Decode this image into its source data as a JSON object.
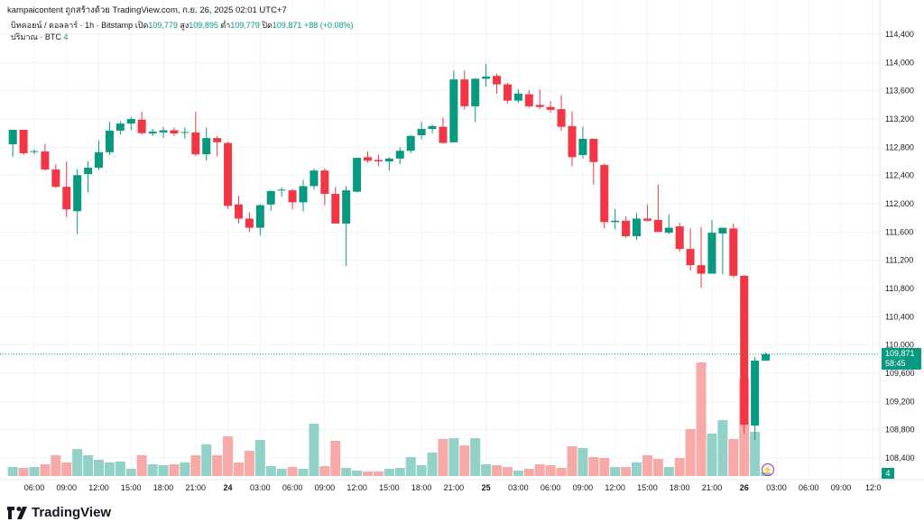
{
  "attribution": "kampaicontent ถูกสร้างด้วย TradingView.com, ก.ย. 26, 2025 02:01 UTC+7",
  "legend": {
    "symbol": "บิทคอยน์ / ดอลลาร์ · 1h · Bitstamp",
    "open_label": "เปิด",
    "open": "109,779",
    "high_label": "สูง",
    "high": "109,895",
    "low_label": "ต่ำ",
    "low": "109,779",
    "close_label": "ปิด",
    "close": "109,871",
    "change": "+88 (+0.08%)"
  },
  "volume_legend": {
    "label": "ปริมาณ · BTC",
    "value": "4"
  },
  "last_price": {
    "price": "109,871",
    "countdown": "58:45"
  },
  "volume_tag": "4",
  "brand": "TradingView",
  "colors": {
    "up": "#089981",
    "down": "#f23645",
    "vol_up": "#92d1c7",
    "vol_down": "#f7a9a7"
  },
  "chart_data": {
    "type": "candlestick",
    "interval": "1h",
    "price_ticks": [
      "114,400",
      "114,000",
      "113,600",
      "113,200",
      "112,800",
      "112,400",
      "112,000",
      "111,600",
      "111,200",
      "110,800",
      "110,400",
      "110,000",
      "109,600",
      "109,200",
      "108,800",
      "108,400"
    ],
    "price_range": [
      108400,
      114400
    ],
    "time_ticks": [
      "06:00",
      "09:00",
      "12:00",
      "15:00",
      "18:00",
      "21:00",
      "24",
      "03:00",
      "06:00",
      "09:00",
      "12:00",
      "15:00",
      "18:00",
      "21:00",
      "25",
      "03:00",
      "06:00",
      "09:00",
      "12:00",
      "15:00",
      "18:00",
      "21:00",
      "26",
      "03:00",
      "06:00",
      "09:00",
      "12:0"
    ],
    "first_candle": "23 04:00",
    "ohlc": [
      [
        112842,
        113047,
        112664,
        113047
      ],
      [
        113047,
        113047,
        112690,
        112715
      ],
      [
        112740,
        112770,
        112700,
        112745
      ],
      [
        112740,
        112850,
        112470,
        112485
      ],
      [
        112485,
        112560,
        112220,
        112240
      ],
      [
        112240,
        112600,
        111810,
        111920
      ],
      [
        111895,
        112490,
        111570,
        112405
      ],
      [
        112420,
        112600,
        112160,
        112510
      ],
      [
        112510,
        112890,
        112480,
        112730
      ],
      [
        112730,
        113160,
        112690,
        113035
      ],
      [
        113035,
        113170,
        112980,
        113135
      ],
      [
        113135,
        113230,
        113040,
        113200
      ],
      [
        113190,
        113300,
        112980,
        113000
      ],
      [
        112995,
        113060,
        112960,
        113020
      ],
      [
        113010,
        113090,
        112930,
        113040
      ],
      [
        113040,
        113080,
        112960,
        112995
      ],
      [
        113010,
        113080,
        112920,
        113015
      ],
      [
        113010,
        113300,
        112680,
        112700
      ],
      [
        112700,
        113080,
        112610,
        112930
      ],
      [
        112930,
        112960,
        112670,
        112870
      ],
      [
        112860,
        112880,
        111930,
        111970
      ],
      [
        111990,
        112110,
        111720,
        111790
      ],
      [
        111790,
        111880,
        111600,
        111660
      ],
      [
        111660,
        111990,
        111550,
        111980
      ],
      [
        111990,
        112190,
        111900,
        112180
      ],
      [
        112190,
        112230,
        112100,
        112200
      ],
      [
        112190,
        112210,
        111920,
        112020
      ],
      [
        112020,
        112340,
        111890,
        112250
      ],
      [
        112250,
        112500,
        112200,
        112470
      ],
      [
        112470,
        112500,
        111980,
        112140
      ],
      [
        112140,
        112240,
        111720,
        111720
      ],
      [
        111720,
        112250,
        111120,
        112190
      ],
      [
        112170,
        112650,
        112160,
        112650
      ],
      [
        112660,
        112740,
        112580,
        112610
      ],
      [
        112620,
        112700,
        112530,
        112600
      ],
      [
        112600,
        112660,
        112470,
        112640
      ],
      [
        112640,
        112800,
        112560,
        112750
      ],
      [
        112750,
        112970,
        112720,
        112960
      ],
      [
        112970,
        113160,
        112910,
        113060
      ],
      [
        113060,
        113120,
        113000,
        113100
      ],
      [
        113090,
        113220,
        112860,
        112860
      ],
      [
        112870,
        113890,
        112870,
        113760
      ],
      [
        113760,
        113890,
        113330,
        113380
      ],
      [
        113380,
        113780,
        113160,
        113770
      ],
      [
        113770,
        113980,
        113660,
        113800
      ],
      [
        113810,
        113840,
        113560,
        113690
      ],
      [
        113690,
        113710,
        113420,
        113460
      ],
      [
        113460,
        113620,
        113430,
        113560
      ],
      [
        113550,
        113610,
        113360,
        113380
      ],
      [
        113400,
        113620,
        113340,
        113370
      ],
      [
        113370,
        113450,
        113290,
        113330
      ],
      [
        113340,
        113540,
        113030,
        113090
      ],
      [
        113100,
        113310,
        112530,
        112660
      ],
      [
        112690,
        113090,
        112640,
        112920
      ],
      [
        112920,
        112920,
        112270,
        112590
      ],
      [
        112550,
        112570,
        111650,
        111740
      ],
      [
        111740,
        111930,
        111640,
        111760
      ],
      [
        111760,
        111820,
        111520,
        111540
      ],
      [
        111540,
        111870,
        111490,
        111790
      ],
      [
        111790,
        111990,
        111750,
        111760
      ],
      [
        111770,
        112270,
        111600,
        111600
      ],
      [
        111590,
        111850,
        111570,
        111660
      ],
      [
        111680,
        111730,
        111320,
        111360
      ],
      [
        111360,
        111650,
        111050,
        111130
      ],
      [
        111130,
        111670,
        110810,
        111010
      ],
      [
        111010,
        111770,
        111010,
        111590
      ],
      [
        111580,
        111660,
        111000,
        111660
      ],
      [
        111650,
        111720,
        110950,
        110980
      ],
      [
        110980,
        110990,
        108740,
        108870
      ],
      [
        108860,
        109830,
        108660,
        109779
      ],
      [
        109779,
        109895,
        109779,
        109871
      ]
    ],
    "volume": [
      10,
      9,
      10,
      13,
      23,
      15,
      30,
      23,
      18,
      15,
      16,
      8,
      23,
      13,
      12,
      13,
      15,
      23,
      35,
      23,
      44,
      15,
      28,
      40,
      11,
      8,
      10,
      8,
      58,
      11,
      39,
      9,
      6,
      5,
      5,
      8,
      9,
      21,
      12,
      26,
      41,
      42,
      34,
      42,
      13,
      12,
      10,
      6,
      8,
      13,
      12,
      9,
      33,
      31,
      21,
      20,
      10,
      10,
      15,
      23,
      19,
      10,
      20,
      52,
      126,
      47,
      62,
      41,
      108,
      49,
      4
    ]
  }
}
